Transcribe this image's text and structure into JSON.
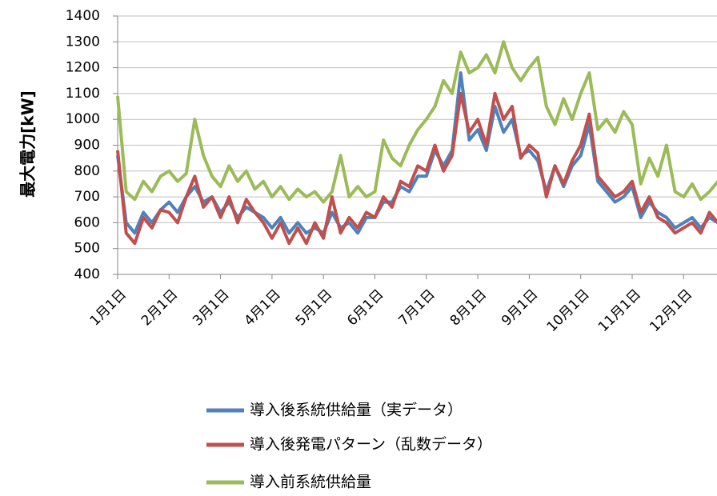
{
  "chart_data": {
    "type": "line",
    "ylabel": "最大電力[kW]",
    "categories": [
      "1月1日",
      null,
      null,
      null,
      null,
      null,
      "2月1日",
      null,
      null,
      null,
      null,
      null,
      "3月1日",
      null,
      null,
      null,
      null,
      null,
      "4月1日",
      null,
      null,
      null,
      null,
      null,
      "5月1日",
      null,
      null,
      null,
      null,
      null,
      "6月1日",
      null,
      null,
      null,
      null,
      null,
      "7月1日",
      null,
      null,
      null,
      null,
      null,
      "8月1日",
      null,
      null,
      null,
      null,
      null,
      "9月1日",
      null,
      null,
      null,
      null,
      null,
      "10月1日",
      null,
      null,
      null,
      null,
      null,
      "11月1日",
      null,
      null,
      null,
      null,
      null,
      "12月1日",
      null,
      null,
      null,
      null,
      null
    ],
    "series": [
      {
        "name": "導入前系統供給量",
        "color": "#9bbb59",
        "values": [
          1090,
          720,
          690,
          760,
          720,
          780,
          800,
          760,
          790,
          1000,
          860,
          780,
          740,
          820,
          760,
          800,
          730,
          760,
          700,
          740,
          690,
          730,
          700,
          720,
          680,
          720,
          860,
          700,
          740,
          700,
          720,
          920,
          850,
          820,
          900,
          960,
          1000,
          1050,
          1150,
          1100,
          1260,
          1180,
          1200,
          1250,
          1180,
          1300,
          1200,
          1150,
          1200,
          1240,
          1050,
          980,
          1080,
          1000,
          1100,
          1180,
          960,
          1000,
          950,
          1030,
          980,
          750,
          850,
          780,
          900,
          720,
          700,
          750,
          690,
          720,
          760,
          800
        ]
      },
      {
        "name": "導入後系統供給量（実データ）",
        "color": "#4f81bd",
        "values": [
          860,
          600,
          560,
          640,
          600,
          650,
          680,
          640,
          700,
          740,
          680,
          700,
          640,
          680,
          620,
          660,
          640,
          620,
          580,
          620,
          560,
          600,
          560,
          580,
          560,
          640,
          580,
          600,
          560,
          620,
          620,
          680,
          680,
          740,
          720,
          780,
          780,
          880,
          820,
          880,
          1180,
          920,
          960,
          880,
          1050,
          950,
          1000,
          860,
          880,
          840,
          720,
          820,
          740,
          820,
          860,
          980,
          760,
          720,
          680,
          700,
          740,
          620,
          680,
          640,
          620,
          580,
          600,
          620,
          580,
          620,
          600,
          620
        ]
      },
      {
        "name": "導入後発電パターン（乱数データ）",
        "color": "#c0504d",
        "values": [
          880,
          560,
          520,
          620,
          580,
          650,
          640,
          600,
          700,
          780,
          660,
          700,
          620,
          700,
          600,
          690,
          640,
          600,
          540,
          600,
          520,
          580,
          520,
          600,
          540,
          700,
          560,
          620,
          580,
          640,
          620,
          700,
          660,
          760,
          740,
          820,
          800,
          900,
          800,
          860,
          1100,
          950,
          1000,
          900,
          1100,
          1000,
          1050,
          850,
          900,
          870,
          700,
          820,
          750,
          840,
          900,
          1020,
          780,
          740,
          700,
          720,
          760,
          640,
          700,
          620,
          600,
          560,
          580,
          600,
          560,
          640,
          600,
          620
        ]
      }
    ],
    "ylim": [
      400,
      1400
    ],
    "yticks": [
      400,
      500,
      600,
      700,
      800,
      900,
      1000,
      1100,
      1200,
      1300,
      1400
    ],
    "grid": true
  }
}
